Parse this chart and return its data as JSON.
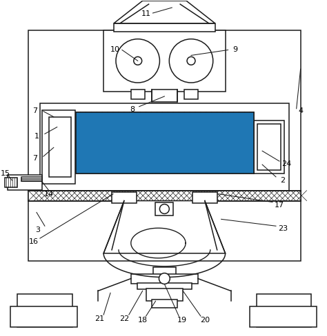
{
  "bg_color": "#ffffff",
  "line_color": "#1a1a1a",
  "lw": 1.1,
  "fig_width": 4.74,
  "fig_height": 4.89,
  "dpi": 100
}
